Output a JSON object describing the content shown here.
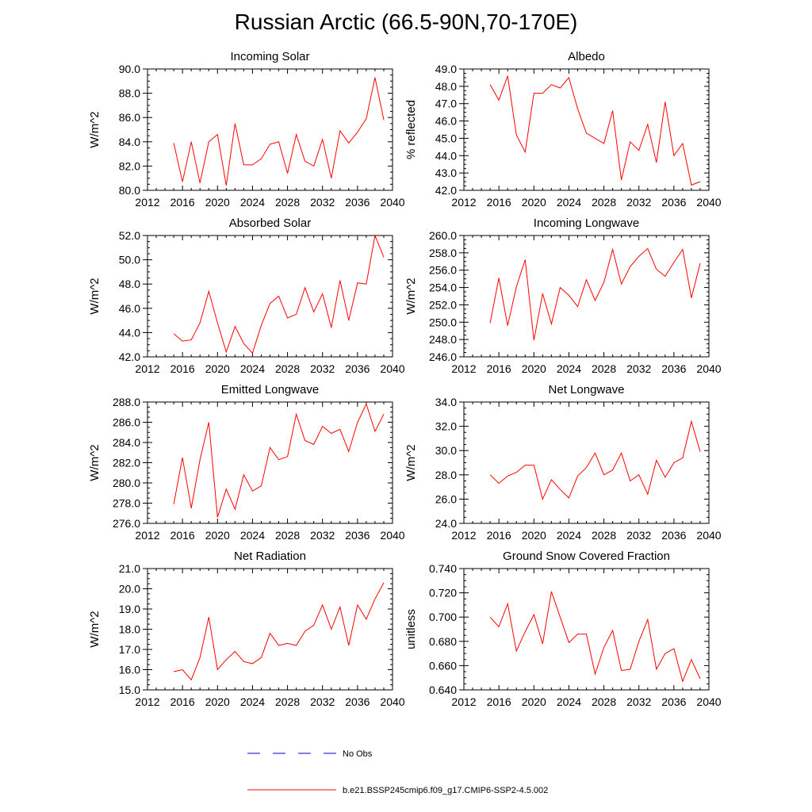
{
  "title": "Russian Arctic (66.5-90N,70-170E)",
  "legend": {
    "obs_label": "No Obs",
    "model_label": "b.e21.BSSP245cmip6.f09_g17.CMIP6-SSP2-4.5.002",
    "obs_color": "#0000cc",
    "model_color": "#ff0000"
  },
  "chart_data": [
    {
      "type": "line",
      "title": "Incoming Solar",
      "ylabel": "W/m^2",
      "xlabel": "",
      "xlim": [
        2012,
        2040
      ],
      "ylim": [
        80.0,
        90.0
      ],
      "x_ticks": [
        2012,
        2016,
        2020,
        2024,
        2028,
        2032,
        2036,
        2040
      ],
      "y_ticks": [
        "80.0",
        "82.0",
        "84.0",
        "86.0",
        "88.0",
        "90.0"
      ],
      "x": [
        2015,
        2016,
        2017,
        2018,
        2019,
        2020,
        2021,
        2022,
        2023,
        2024,
        2025,
        2026,
        2027,
        2028,
        2029,
        2030,
        2031,
        2032,
        2033,
        2034,
        2035,
        2036,
        2037,
        2038,
        2039
      ],
      "values": [
        83.9,
        80.7,
        84.0,
        80.6,
        84.0,
        84.6,
        80.4,
        85.5,
        82.1,
        82.1,
        82.6,
        83.8,
        84.0,
        81.4,
        84.6,
        82.4,
        82.0,
        84.2,
        81.0,
        84.9,
        83.9,
        84.8,
        85.9,
        89.3,
        85.8
      ]
    },
    {
      "type": "line",
      "title": "Albedo",
      "ylabel": "% reflected",
      "xlabel": "",
      "xlim": [
        2012,
        2040
      ],
      "ylim": [
        42.0,
        49.0
      ],
      "x_ticks": [
        2012,
        2016,
        2020,
        2024,
        2028,
        2032,
        2036,
        2040
      ],
      "y_ticks": [
        "42.0",
        "43.0",
        "44.0",
        "45.0",
        "46.0",
        "47.0",
        "48.0",
        "49.0"
      ],
      "x": [
        2015,
        2016,
        2017,
        2018,
        2019,
        2020,
        2021,
        2022,
        2023,
        2024,
        2025,
        2026,
        2027,
        2028,
        2029,
        2030,
        2031,
        2032,
        2033,
        2034,
        2035,
        2036,
        2037,
        2038,
        2039
      ],
      "values": [
        48.1,
        47.2,
        48.6,
        45.2,
        44.2,
        47.6,
        47.6,
        48.1,
        47.9,
        48.5,
        46.7,
        45.3,
        45.0,
        44.7,
        46.6,
        42.6,
        44.8,
        44.3,
        45.8,
        43.6,
        47.1,
        44.0,
        44.7,
        42.3,
        42.5
      ]
    },
    {
      "type": "line",
      "title": "Absorbed Solar",
      "ylabel": "W/m^2",
      "xlabel": "",
      "xlim": [
        2012,
        2040
      ],
      "ylim": [
        42.0,
        52.0
      ],
      "x_ticks": [
        2012,
        2016,
        2020,
        2024,
        2028,
        2032,
        2036,
        2040
      ],
      "y_ticks": [
        "42.0",
        "44.0",
        "46.0",
        "48.0",
        "50.0",
        "52.0"
      ],
      "x": [
        2015,
        2016,
        2017,
        2018,
        2019,
        2020,
        2021,
        2022,
        2023,
        2024,
        2025,
        2026,
        2027,
        2028,
        2029,
        2030,
        2031,
        2032,
        2033,
        2034,
        2035,
        2036,
        2037,
        2038,
        2039
      ],
      "values": [
        43.9,
        43.3,
        43.4,
        44.8,
        47.4,
        44.8,
        42.4,
        44.5,
        43.1,
        42.3,
        44.6,
        46.4,
        47.0,
        45.2,
        45.5,
        47.7,
        45.7,
        47.2,
        44.4,
        48.3,
        45.0,
        48.1,
        48.0,
        52.0,
        50.2
      ]
    },
    {
      "type": "line",
      "title": "Incoming Longwave",
      "ylabel": "W/m^2",
      "xlabel": "",
      "xlim": [
        2012,
        2040
      ],
      "ylim": [
        246.0,
        260.0
      ],
      "x_ticks": [
        2012,
        2016,
        2020,
        2024,
        2028,
        2032,
        2036,
        2040
      ],
      "y_ticks": [
        "246.0",
        "248.0",
        "250.0",
        "252.0",
        "254.0",
        "256.0",
        "258.0",
        "260.0"
      ],
      "x": [
        2015,
        2016,
        2017,
        2018,
        2019,
        2020,
        2021,
        2022,
        2023,
        2024,
        2025,
        2026,
        2027,
        2028,
        2029,
        2030,
        2031,
        2032,
        2033,
        2034,
        2035,
        2036,
        2037,
        2038,
        2039
      ],
      "values": [
        249.9,
        255.1,
        249.6,
        254.1,
        257.2,
        247.9,
        253.3,
        249.8,
        254.0,
        253.1,
        251.8,
        254.9,
        252.5,
        254.6,
        258.4,
        254.4,
        256.4,
        257.6,
        258.5,
        256.1,
        255.3,
        256.9,
        258.4,
        252.8,
        256.8
      ]
    },
    {
      "type": "line",
      "title": "Emitted Longwave",
      "ylabel": "W/m^2",
      "xlabel": "",
      "xlim": [
        2012,
        2040
      ],
      "ylim": [
        276.0,
        288.0
      ],
      "x_ticks": [
        2012,
        2016,
        2020,
        2024,
        2028,
        2032,
        2036,
        2040
      ],
      "y_ticks": [
        "276.0",
        "278.0",
        "280.0",
        "282.0",
        "284.0",
        "286.0",
        "288.0"
      ],
      "x": [
        2015,
        2016,
        2017,
        2018,
        2019,
        2020,
        2021,
        2022,
        2023,
        2024,
        2025,
        2026,
        2027,
        2028,
        2029,
        2030,
        2031,
        2032,
        2033,
        2034,
        2035,
        2036,
        2037,
        2038,
        2039
      ],
      "values": [
        277.9,
        282.5,
        277.5,
        282.3,
        286.0,
        276.6,
        279.4,
        277.4,
        280.8,
        279.2,
        279.7,
        283.5,
        282.3,
        282.6,
        286.8,
        284.2,
        283.8,
        285.6,
        284.9,
        285.3,
        283.1,
        286.0,
        287.8,
        285.1,
        286.8
      ]
    },
    {
      "type": "line",
      "title": "Net Longwave",
      "ylabel": "W/m^2",
      "xlabel": "",
      "xlim": [
        2012,
        2040
      ],
      "ylim": [
        24.0,
        34.0
      ],
      "x_ticks": [
        2012,
        2016,
        2020,
        2024,
        2028,
        2032,
        2036,
        2040
      ],
      "y_ticks": [
        "24.0",
        "26.0",
        "28.0",
        "30.0",
        "32.0",
        "34.0"
      ],
      "x": [
        2015,
        2016,
        2017,
        2018,
        2019,
        2020,
        2021,
        2022,
        2023,
        2024,
        2025,
        2026,
        2027,
        2028,
        2029,
        2030,
        2031,
        2032,
        2033,
        2034,
        2035,
        2036,
        2037,
        2038,
        2039
      ],
      "values": [
        28.0,
        27.3,
        27.9,
        28.2,
        28.8,
        28.8,
        26.0,
        27.6,
        26.8,
        26.1,
        27.9,
        28.6,
        29.8,
        28.0,
        28.4,
        29.8,
        27.5,
        28.0,
        26.4,
        29.2,
        27.8,
        29.0,
        29.4,
        32.4,
        29.9
      ]
    },
    {
      "type": "line",
      "title": "Net Radiation",
      "ylabel": "W/m^2",
      "xlabel": "",
      "xlim": [
        2012,
        2040
      ],
      "ylim": [
        15.0,
        21.0
      ],
      "x_ticks": [
        2012,
        2016,
        2020,
        2024,
        2028,
        2032,
        2036,
        2040
      ],
      "y_ticks": [
        "15.0",
        "16.0",
        "17.0",
        "18.0",
        "19.0",
        "20.0",
        "21.0"
      ],
      "x": [
        2015,
        2016,
        2017,
        2018,
        2019,
        2020,
        2021,
        2022,
        2023,
        2024,
        2025,
        2026,
        2027,
        2028,
        2029,
        2030,
        2031,
        2032,
        2033,
        2034,
        2035,
        2036,
        2037,
        2038,
        2039
      ],
      "values": [
        15.9,
        16.0,
        15.5,
        16.6,
        18.6,
        16.0,
        16.5,
        16.9,
        16.4,
        16.3,
        16.6,
        17.8,
        17.2,
        17.3,
        17.2,
        17.9,
        18.2,
        19.2,
        18.0,
        19.1,
        17.2,
        19.2,
        18.5,
        19.5,
        20.3
      ]
    },
    {
      "type": "line",
      "title": "Ground Snow Covered Fraction",
      "ylabel": "unitless",
      "xlabel": "",
      "xlim": [
        2012,
        2040
      ],
      "ylim": [
        0.64,
        0.74
      ],
      "x_ticks": [
        2012,
        2016,
        2020,
        2024,
        2028,
        2032,
        2036,
        2040
      ],
      "y_ticks": [
        "0.640",
        "0.660",
        "0.680",
        "0.700",
        "0.720",
        "0.740"
      ],
      "x": [
        2015,
        2016,
        2017,
        2018,
        2019,
        2020,
        2021,
        2022,
        2023,
        2024,
        2025,
        2026,
        2027,
        2028,
        2029,
        2030,
        2031,
        2032,
        2033,
        2034,
        2035,
        2036,
        2037,
        2038,
        2039
      ],
      "values": [
        0.7,
        0.692,
        0.711,
        0.672,
        0.688,
        0.702,
        0.678,
        0.721,
        0.7,
        0.679,
        0.686,
        0.686,
        0.653,
        0.675,
        0.689,
        0.656,
        0.657,
        0.68,
        0.698,
        0.657,
        0.67,
        0.674,
        0.647,
        0.665,
        0.649
      ]
    }
  ]
}
